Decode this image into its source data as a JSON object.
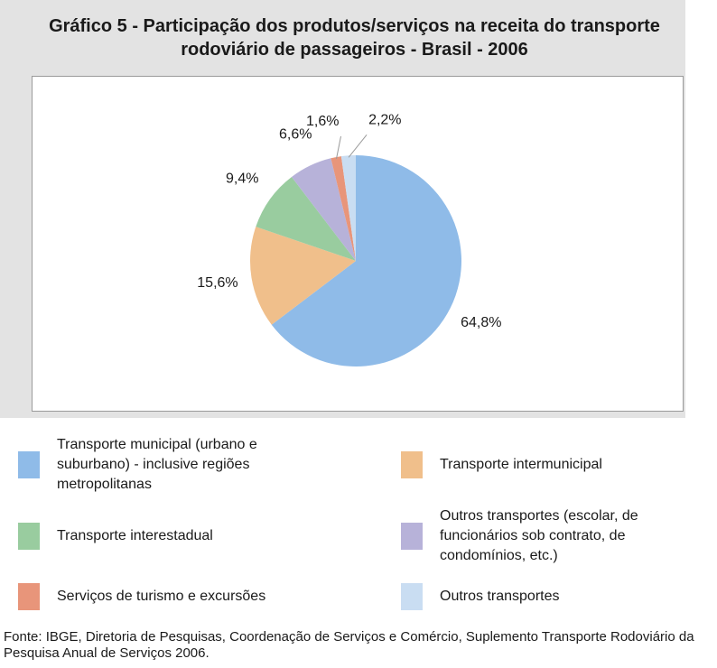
{
  "chart_data": {
    "type": "pie",
    "title": "Gráfico 5 - Participação dos produtos/serviços na receita do transporte rodoviário de passageiros - Brasil - 2006",
    "categories": [
      "Transporte municipal (urbano e suburbano) -  inclusive regiões metropolitanas",
      "Transporte intermunicipal",
      "Transporte interestadual",
      "Outros transportes (escolar, de funcionários sob contrato, de condomínios, etc.)",
      "Serviços de turismo e excursões",
      "Outros transportes"
    ],
    "values": [
      64.8,
      15.6,
      9.4,
      6.6,
      1.6,
      2.2
    ],
    "value_labels": [
      "64,8%",
      "15,6%",
      "9,4%",
      "6,6%",
      "1,6%",
      "2,2%"
    ],
    "colors": [
      "#8fbbe8",
      "#f0bf8b",
      "#99cc9f",
      "#b7b2d9",
      "#e8957a",
      "#c9ddf2"
    ],
    "source": "Fonte: IBGE, Diretoria de Pesquisas, Coordenação de Serviços e Comércio, Suplemento Transporte Rodoviário da Pesquisa Anual de Serviços 2006."
  }
}
